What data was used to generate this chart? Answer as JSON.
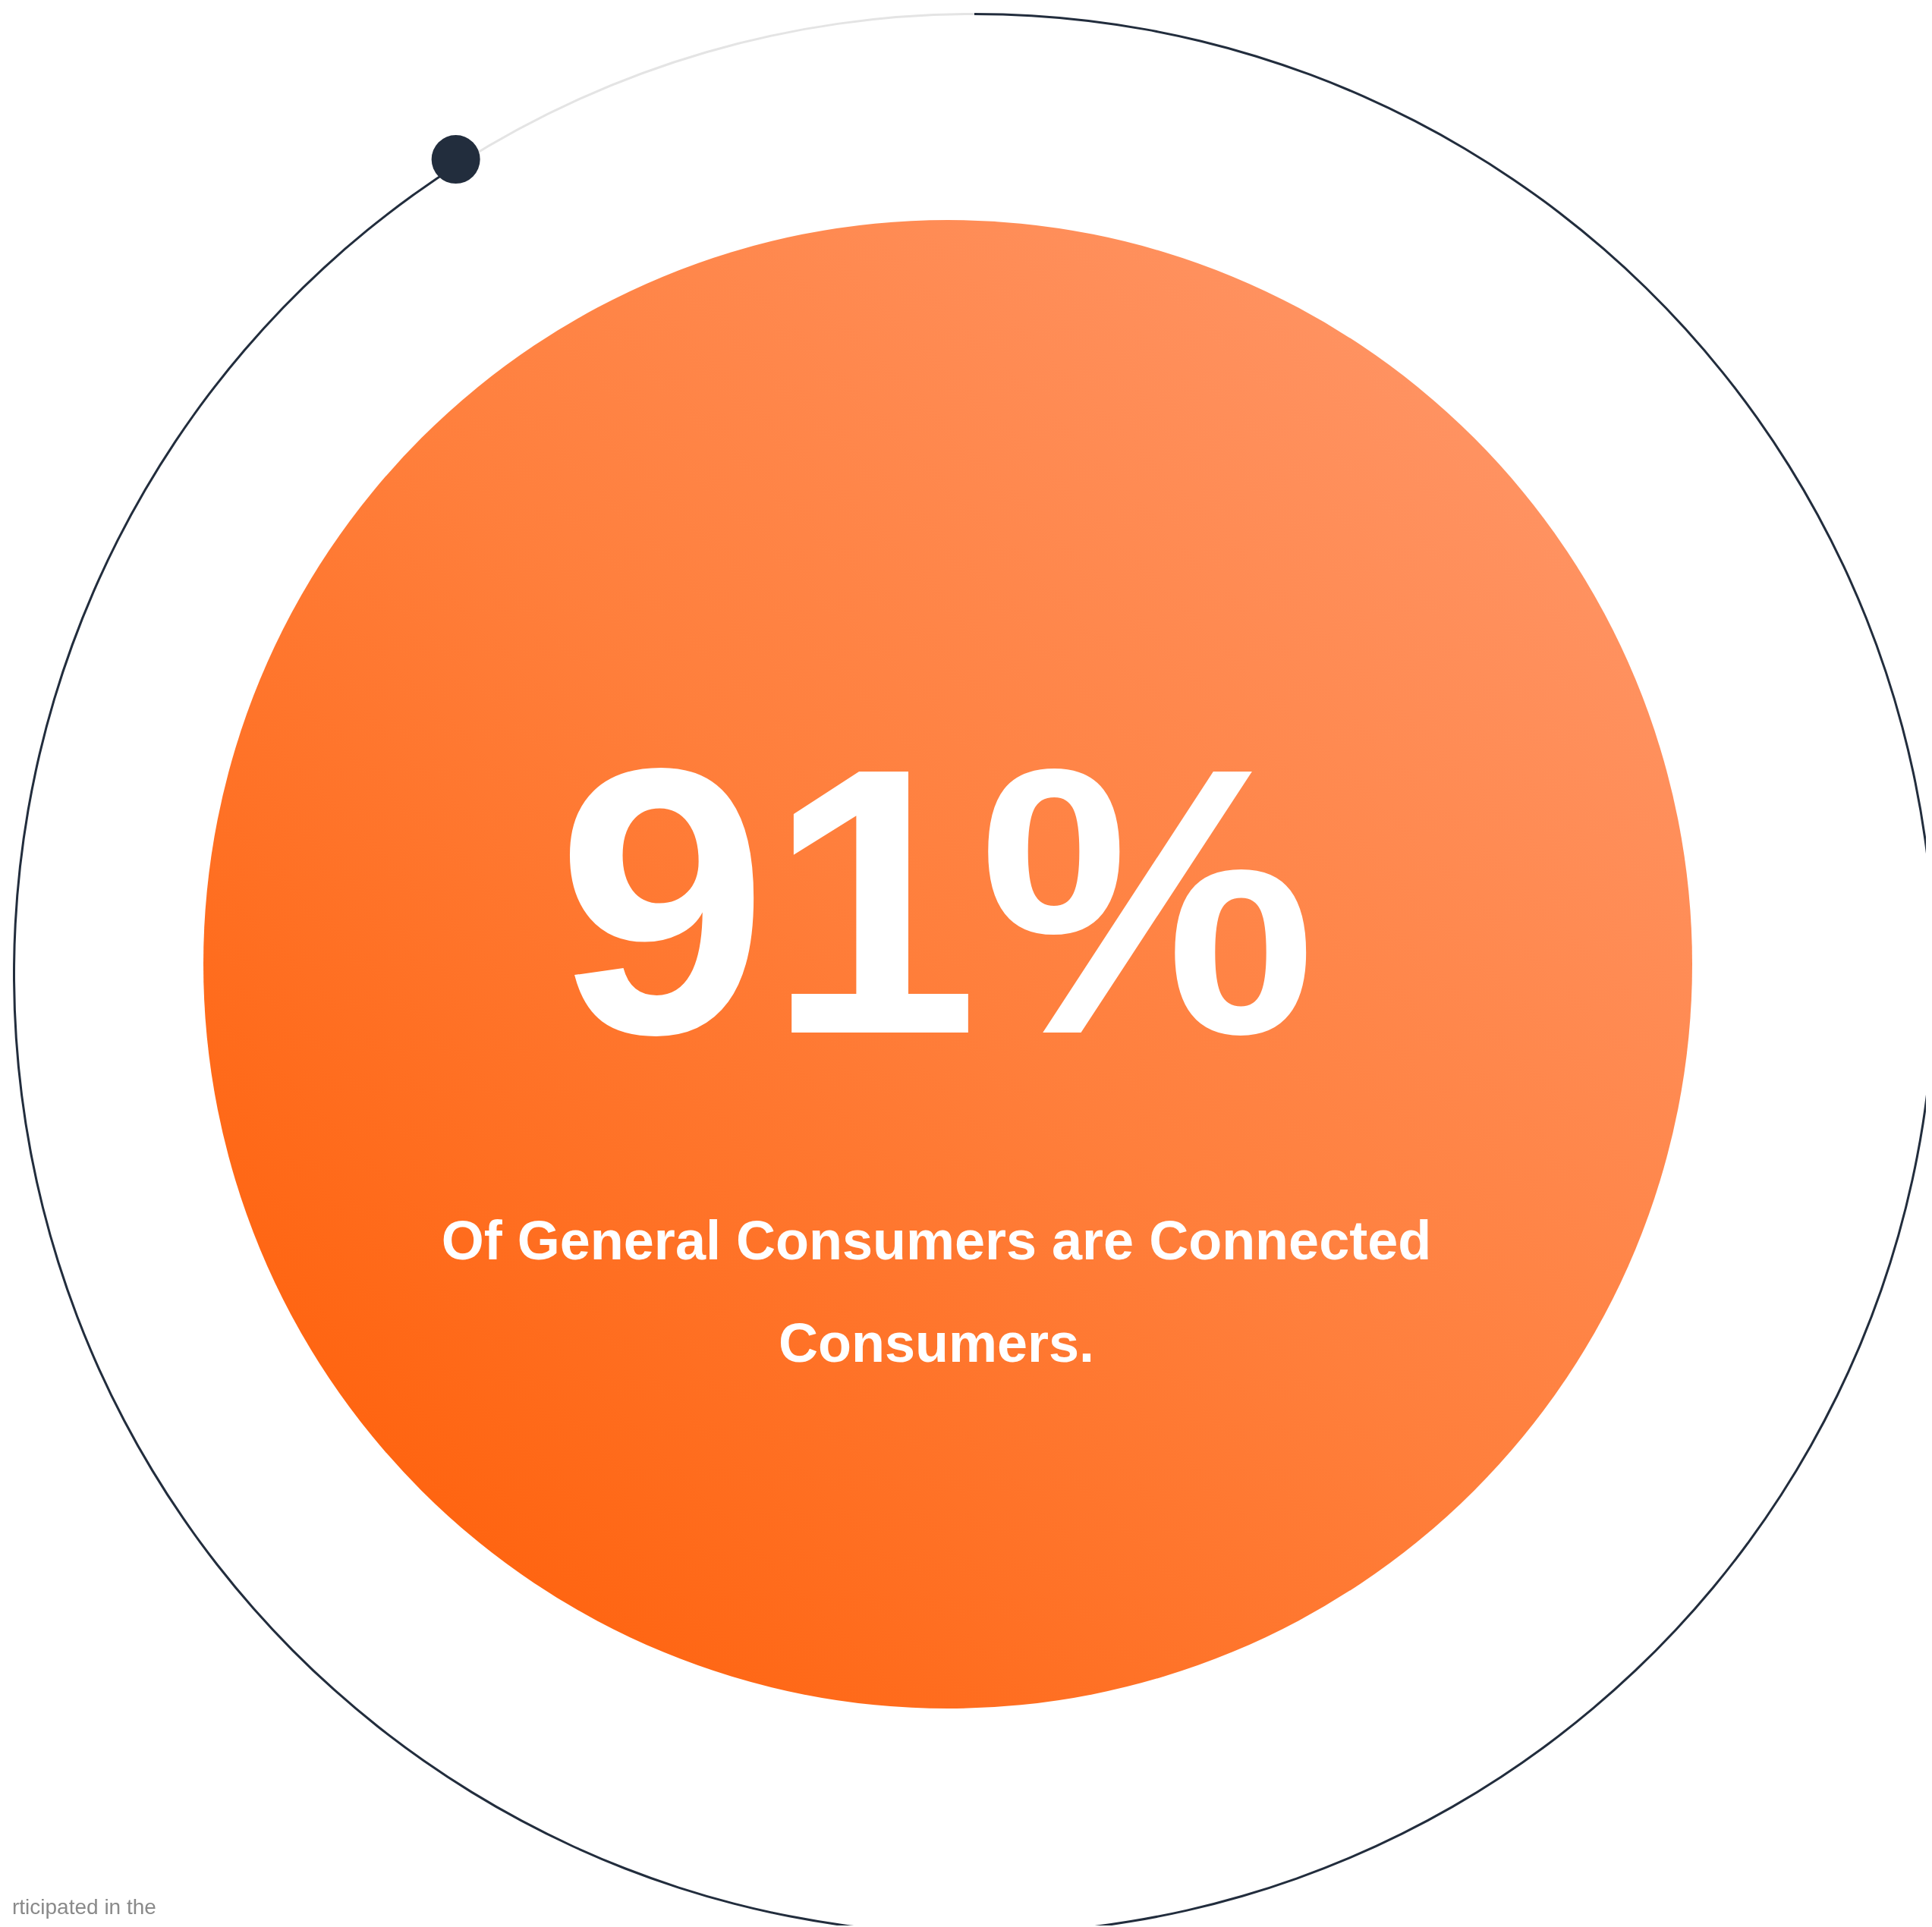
{
  "chart_data": {
    "type": "donut",
    "title": "Of General Consumers are Connected Consumers.",
    "categories": [
      null,
      null
    ],
    "values": [
      91,
      9
    ],
    "colors": [
      "#222d3d",
      "#e4e4e4"
    ],
    "value_labels": [
      "91%",
      null
    ],
    "annotations": [
      "rticipated in the"
    ]
  }
}
